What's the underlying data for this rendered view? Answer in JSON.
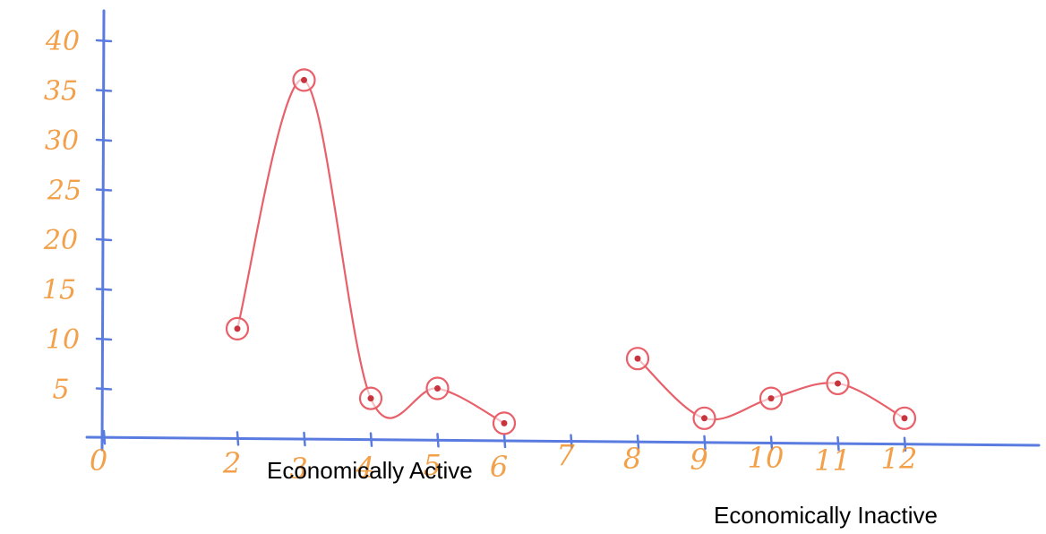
{
  "chart_data": {
    "type": "line",
    "title": "",
    "xlabel": "",
    "ylabel": "",
    "x_ticks": [
      "0",
      "2",
      "3",
      "4",
      "5",
      "6",
      "7",
      "8",
      "9",
      "10",
      "11",
      "12"
    ],
    "y_ticks": [
      "5",
      "10",
      "15",
      "20",
      "25",
      "30",
      "35",
      "40"
    ],
    "ylim": [
      0,
      40
    ],
    "xlim": [
      0,
      13
    ],
    "series": [
      {
        "segment": "Economically Active",
        "points": [
          {
            "x": 2,
            "y": 11
          },
          {
            "x": 3,
            "y": 36
          },
          {
            "x": 4,
            "y": 4
          },
          {
            "x": 5,
            "y": 5
          },
          {
            "x": 6,
            "y": 1.5
          }
        ]
      },
      {
        "segment": "Economically Inactive",
        "points": [
          {
            "x": 8,
            "y": 8
          },
          {
            "x": 9,
            "y": 2
          },
          {
            "x": 10,
            "y": 4
          },
          {
            "x": 11,
            "y": 5.5
          },
          {
            "x": 12,
            "y": 2
          }
        ]
      }
    ],
    "annotations": [
      "Economically Active",
      "Economically Inactive"
    ],
    "grid": false,
    "colors": {
      "axis": "#5a7be0",
      "tick_label": "#f0902a",
      "series": "#e8606a",
      "annotation": "#000000",
      "background": "#ffffff"
    }
  }
}
